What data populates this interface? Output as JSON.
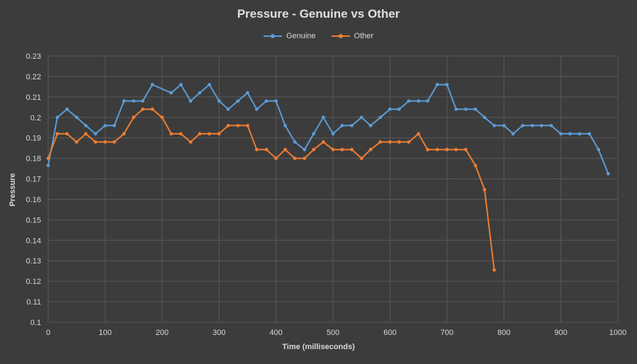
{
  "chart_data": {
    "type": "line",
    "title": "Pressure - Genuine vs Other",
    "xlabel": "Time (milliseconds)",
    "ylabel": "Pressure",
    "xlim": [
      0,
      1000
    ],
    "ylim": [
      0.1,
      0.23
    ],
    "x_ticks": [
      "0",
      "100",
      "200",
      "300",
      "400",
      "500",
      "600",
      "700",
      "800",
      "900",
      "1000"
    ],
    "y_ticks": [
      "0.1",
      "0.11",
      "0.12",
      "0.13",
      "0.14",
      "0.15",
      "0.16",
      "0.17",
      "0.18",
      "0.19",
      "0.2",
      "0.21",
      "0.22",
      "0.23"
    ],
    "grid": true,
    "legend_position": "top",
    "series": [
      {
        "name": "Genuine",
        "color": "#5b9bd5",
        "x": [
          0,
          16,
          33,
          50,
          66,
          83,
          100,
          116,
          133,
          150,
          166,
          183,
          216,
          233,
          250,
          266,
          283,
          300,
          316,
          333,
          350,
          366,
          383,
          400,
          416,
          433,
          450,
          466,
          483,
          500,
          516,
          533,
          550,
          566,
          583,
          600,
          616,
          633,
          650,
          666,
          683,
          700,
          716,
          733,
          750,
          766,
          783,
          800,
          816,
          833,
          850,
          866,
          883,
          900,
          916,
          933,
          950,
          966,
          983
        ],
        "y": [
          0.1765,
          0.2,
          0.204,
          0.2,
          0.196,
          0.192,
          0.196,
          0.196,
          0.208,
          0.208,
          0.208,
          0.216,
          0.212,
          0.216,
          0.208,
          0.212,
          0.216,
          0.208,
          0.204,
          0.208,
          0.212,
          0.204,
          0.208,
          0.208,
          0.196,
          0.188,
          0.1843,
          0.192,
          0.2,
          0.192,
          0.196,
          0.196,
          0.2,
          0.196,
          0.2,
          0.204,
          0.204,
          0.208,
          0.208,
          0.208,
          0.216,
          0.216,
          0.204,
          0.204,
          0.204,
          0.2,
          0.196,
          0.196,
          0.192,
          0.196,
          0.196,
          0.196,
          0.196,
          0.192,
          0.192,
          0.192,
          0.192,
          0.1843,
          0.1725
        ]
      },
      {
        "name": "Other",
        "color": "#ed7d31",
        "x": [
          0,
          16,
          33,
          50,
          66,
          83,
          100,
          116,
          133,
          150,
          166,
          183,
          200,
          216,
          233,
          250,
          266,
          283,
          300,
          316,
          333,
          350,
          366,
          383,
          400,
          416,
          433,
          450,
          466,
          483,
          500,
          516,
          533,
          550,
          566,
          583,
          600,
          616,
          633,
          650,
          666,
          683,
          700,
          716,
          733,
          750,
          766,
          783
        ],
        "y": [
          0.18,
          0.192,
          0.192,
          0.188,
          0.192,
          0.188,
          0.188,
          0.188,
          0.192,
          0.2,
          0.204,
          0.204,
          0.2,
          0.192,
          0.192,
          0.188,
          0.192,
          0.192,
          0.192,
          0.196,
          0.196,
          0.196,
          0.1843,
          0.1843,
          0.18,
          0.1843,
          0.18,
          0.18,
          0.1843,
          0.188,
          0.1843,
          0.1843,
          0.1843,
          0.18,
          0.1843,
          0.188,
          0.188,
          0.188,
          0.188,
          0.192,
          0.1843,
          0.1843,
          0.1843,
          0.1843,
          0.1843,
          0.1765,
          0.1647,
          0.1255
        ]
      }
    ]
  }
}
